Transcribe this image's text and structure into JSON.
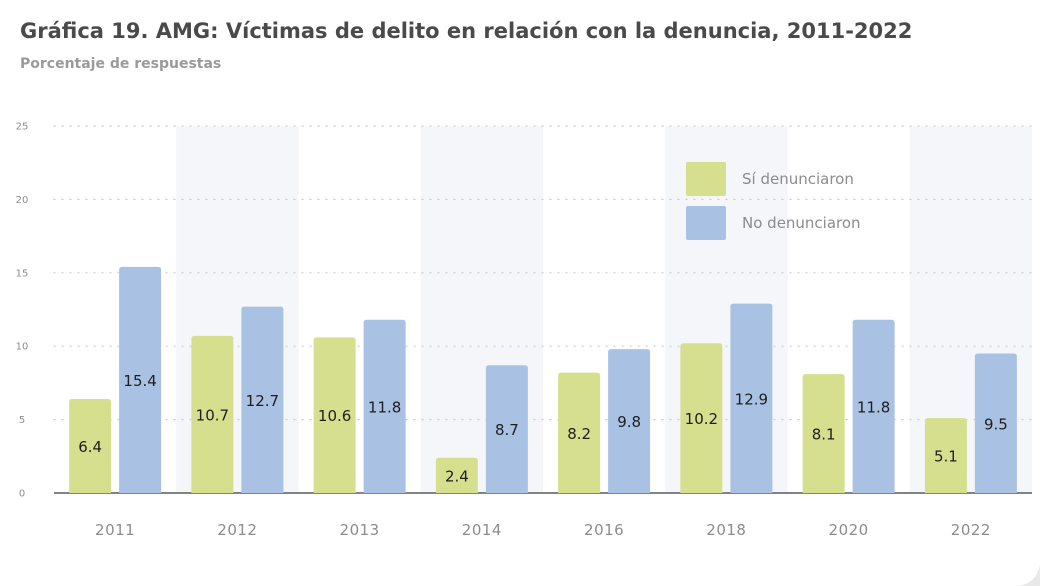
{
  "title": "Gráfica 19. AMG: Víctimas de delito en relación con la denuncia, 2011-2022",
  "subtitle": "Porcentaje de respuestas",
  "colors": {
    "si": "#d5df8d",
    "no": "#a9c1e3",
    "band": "#f4f6f9",
    "grid": "#c9c9c9",
    "axis": "#5a5a5a"
  },
  "chart_data": {
    "type": "bar",
    "categories": [
      "2011",
      "2012",
      "2013",
      "2014",
      "2016",
      "2018",
      "2020",
      "2022"
    ],
    "series": [
      {
        "name": "Sí denunciaron",
        "values": [
          6.4,
          10.7,
          10.6,
          2.4,
          8.2,
          10.2,
          8.1,
          5.1
        ]
      },
      {
        "name": "No denunciaron",
        "values": [
          15.4,
          12.7,
          11.8,
          8.7,
          9.8,
          12.9,
          11.8,
          9.5
        ]
      }
    ],
    "yticks": [
      "0",
      "5",
      "10",
      "15",
      "20",
      "25"
    ],
    "ylim": [
      0,
      25
    ],
    "grid": true,
    "legend_position": "top-right"
  }
}
